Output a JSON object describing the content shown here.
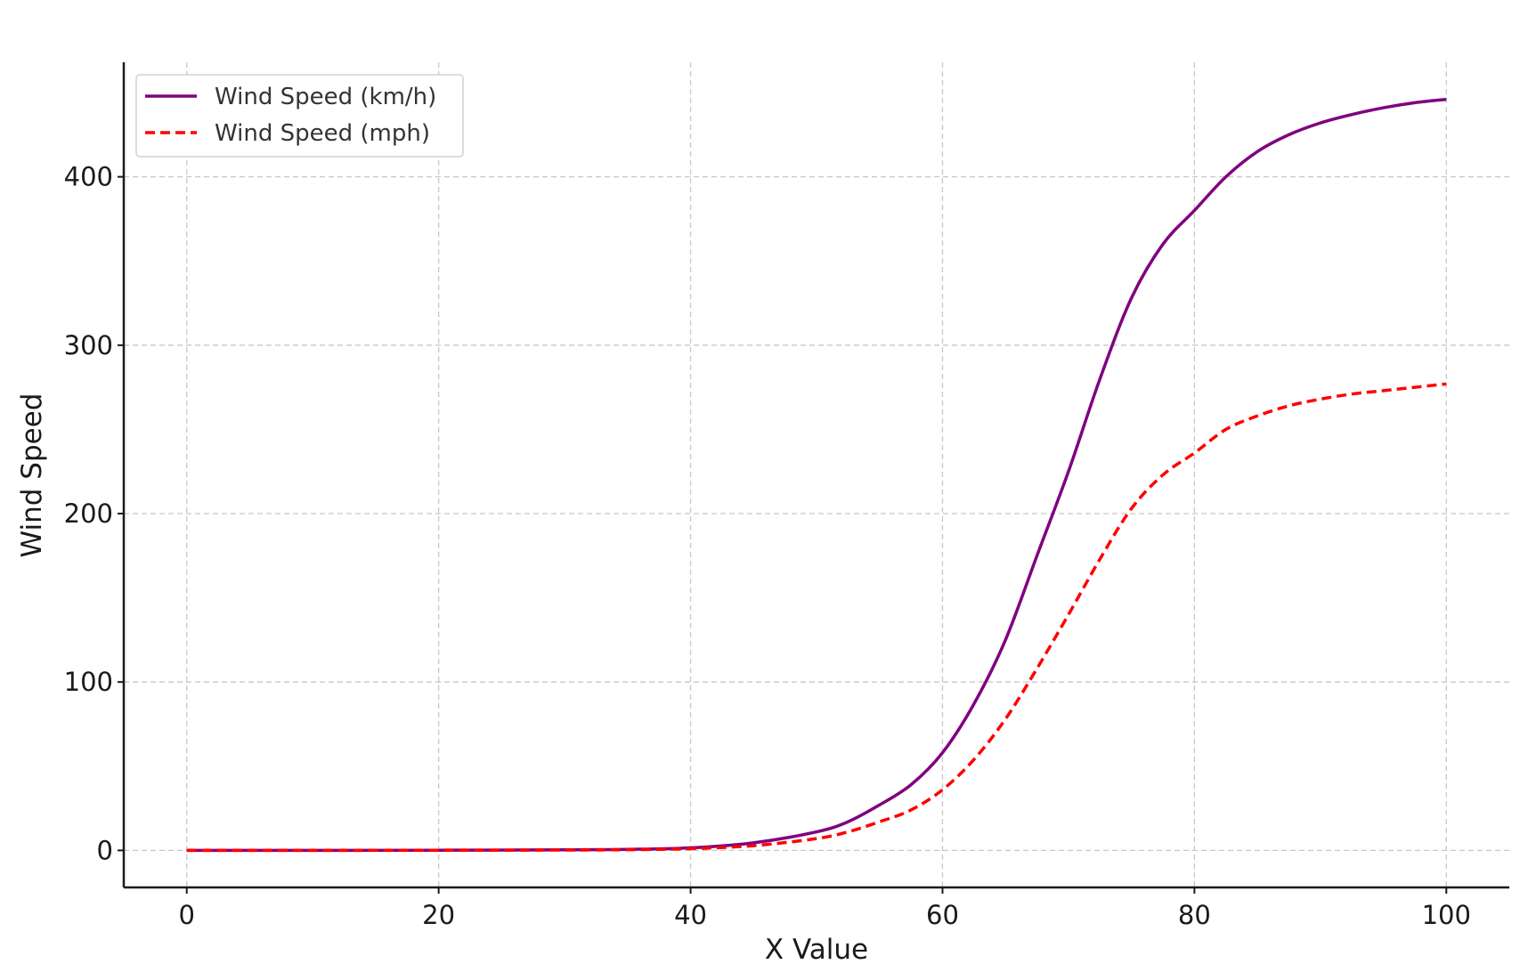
{
  "chart_data": {
    "type": "line",
    "title": "",
    "xlabel": "X Value",
    "ylabel": "Wind Speed",
    "xlim": [
      -5,
      105
    ],
    "ylim": [
      -22,
      468
    ],
    "xticks": [
      0,
      20,
      40,
      60,
      80,
      100
    ],
    "yticks": [
      0,
      100,
      200,
      300,
      400
    ],
    "grid": true,
    "legend_position": "top-left",
    "x": [
      0,
      10,
      20,
      30,
      35,
      40,
      45,
      50,
      52.5,
      55,
      57.5,
      60,
      62.5,
      65,
      67.5,
      70,
      72.5,
      75,
      77.5,
      80,
      82.5,
      85,
      87.5,
      90,
      92.5,
      95,
      97.5,
      100
    ],
    "series": [
      {
        "name": "Wind Speed (km/h)",
        "color": "#800080",
        "style": "solid",
        "values": [
          0,
          0,
          0.1,
          0.3,
          0.6,
          1.5,
          4.5,
          11,
          17,
          27,
          39,
          58,
          87,
          125,
          175,
          225,
          280,
          328,
          360,
          380,
          400,
          415,
          425,
          432,
          437,
          441,
          444,
          446
        ]
      },
      {
        "name": "Wind Speed (mph)",
        "color": "#ff0000",
        "style": "dashed",
        "values": [
          0,
          0,
          0.1,
          0.2,
          0.4,
          1,
          2.8,
          7,
          11,
          17,
          24,
          36,
          54,
          78,
          108,
          140,
          173,
          203,
          223,
          236,
          250,
          258,
          264,
          268,
          271,
          273,
          275,
          277
        ]
      }
    ]
  }
}
